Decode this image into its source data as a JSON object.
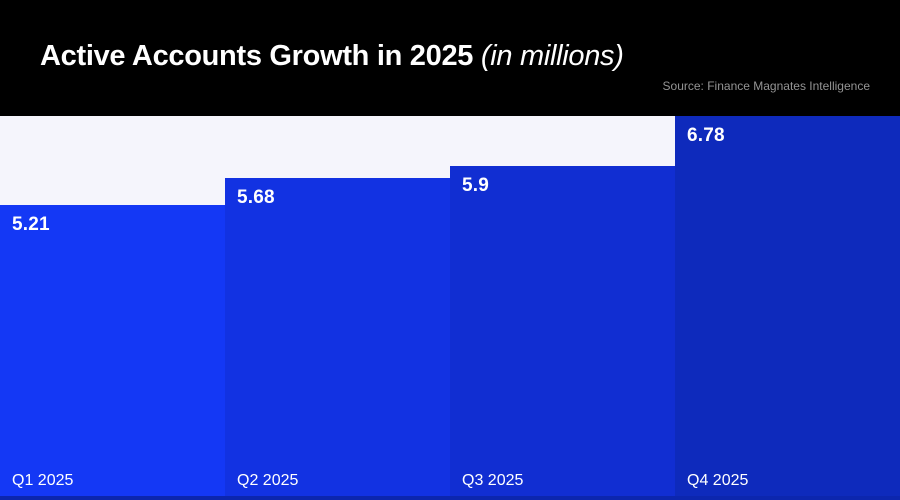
{
  "header": {
    "title": "Active Accounts Growth in 2025",
    "subtitle": "(in millions)",
    "source": "Source: Finance Magnates Intelligence"
  },
  "chart_data": {
    "type": "bar",
    "title": "Active Accounts Growth in 2025 (in millions)",
    "categories": [
      "Q1 2025",
      "Q2 2025",
      "Q3 2025",
      "Q4 2025"
    ],
    "values": [
      5.21,
      5.68,
      5.9,
      6.78
    ],
    "unit": "millions",
    "xlabel": "",
    "ylabel": "",
    "ylim": [
      0,
      6.78
    ],
    "grid": false,
    "legend": "none",
    "value_labels_shown": true,
    "colors": {
      "header_background": "#000000",
      "chart_background": "#f5f5fc",
      "bar_colors": [
        "#1438f5",
        "#1232e2",
        "#112ed2",
        "#0e2abc"
      ],
      "baseline_color": "#0c26ae",
      "label_text": "#ffffff",
      "source_text": "#949494"
    }
  }
}
